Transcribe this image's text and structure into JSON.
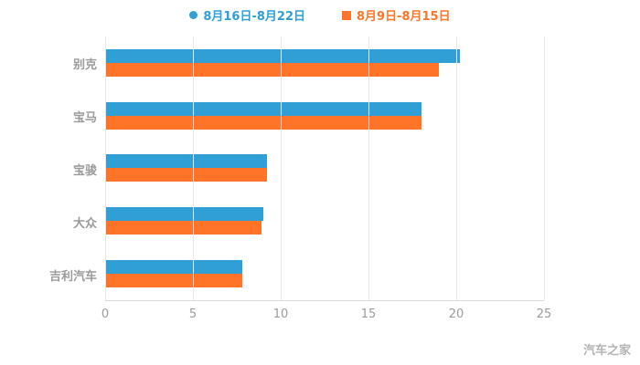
{
  "legend": [
    {
      "label": "8月16日-8月22日",
      "color": "#2f9fd6",
      "marker": "circle"
    },
    {
      "label": "8月9日-8月15日",
      "color": "#ff7428",
      "marker": "square"
    }
  ],
  "watermark": "汽车之家",
  "chart_data": {
    "type": "bar",
    "orientation": "horizontal",
    "title": "",
    "xlabel": "",
    "ylabel": "",
    "categories": [
      "别克",
      "宝马",
      "宝骏",
      "大众",
      "吉利汽车"
    ],
    "series": [
      {
        "name": "8月16日-8月22日",
        "color": "#2f9fd6",
        "values": [
          20.2,
          18,
          9.2,
          9,
          7.8
        ]
      },
      {
        "name": "8月9日-8月15日",
        "color": "#ff7428",
        "values": [
          19,
          18,
          9.2,
          8.9,
          7.8
        ]
      }
    ],
    "xlim": [
      0,
      25
    ],
    "xticks": [
      0,
      5,
      10,
      15,
      20,
      25
    ],
    "grid": true,
    "legend_position": "top"
  }
}
